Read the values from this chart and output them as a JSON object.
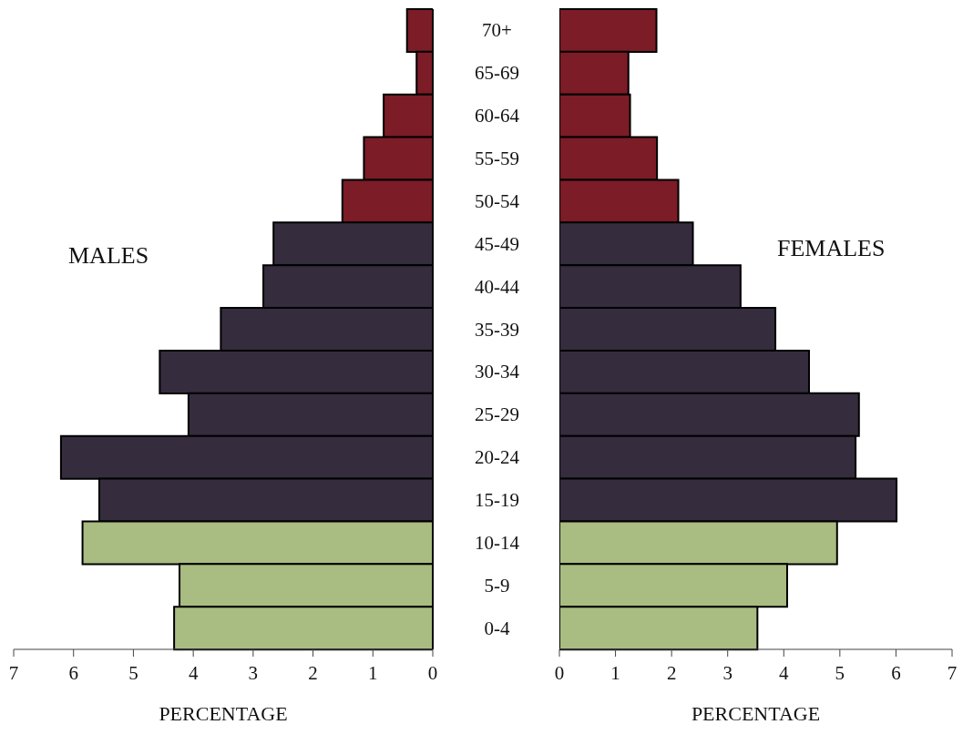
{
  "chart_data": [
    {
      "type": "bar",
      "orientation": "horizontal",
      "categories": [
        "70+",
        "65-69",
        "60-64",
        "55-59",
        "50-54",
        "45-49",
        "40-44",
        "35-39",
        "30-34",
        "25-29",
        "20-24",
        "15-19",
        "10-14",
        "5-9",
        "0-4"
      ],
      "values": [
        0.43,
        0.27,
        0.82,
        1.15,
        1.51,
        2.66,
        2.83,
        3.54,
        4.56,
        4.08,
        6.21,
        5.57,
        5.85,
        4.23,
        4.32
      ],
      "colors": [
        "#7b1c27",
        "#7b1c27",
        "#7b1c27",
        "#7b1c27",
        "#7b1c27",
        "#352c3d",
        "#352c3d",
        "#352c3d",
        "#352c3d",
        "#352c3d",
        "#352c3d",
        "#352c3d",
        "#a9bc81",
        "#a9bc81",
        "#a9bc81"
      ],
      "xlim": [
        7,
        0
      ],
      "xticks": [
        7,
        6,
        5,
        4,
        3,
        2,
        1,
        0
      ],
      "xlabel": "PERCENTAGE",
      "annotations": [
        "MALES"
      ]
    },
    {
      "type": "bar",
      "orientation": "horizontal",
      "categories": [
        "70+",
        "65-69",
        "60-64",
        "55-59",
        "50-54",
        "45-49",
        "40-44",
        "35-39",
        "30-34",
        "25-29",
        "20-24",
        "15-19",
        "10-14",
        "5-9",
        "0-4"
      ],
      "values": [
        1.73,
        1.23,
        1.26,
        1.74,
        2.12,
        2.38,
        3.23,
        3.85,
        4.45,
        5.34,
        5.28,
        6.01,
        4.95,
        4.06,
        3.53
      ],
      "colors": [
        "#7b1c27",
        "#7b1c27",
        "#7b1c27",
        "#7b1c27",
        "#7b1c27",
        "#352c3d",
        "#352c3d",
        "#352c3d",
        "#352c3d",
        "#352c3d",
        "#352c3d",
        "#352c3d",
        "#a9bc81",
        "#a9bc81",
        "#a9bc81"
      ],
      "xlim": [
        0,
        7
      ],
      "xticks": [
        0,
        1,
        2,
        3,
        4,
        5,
        6,
        7
      ],
      "xlabel": "PERCENTAGE",
      "annotations": [
        "FEMALES"
      ],
      "tick_labels": "x"
    }
  ]
}
